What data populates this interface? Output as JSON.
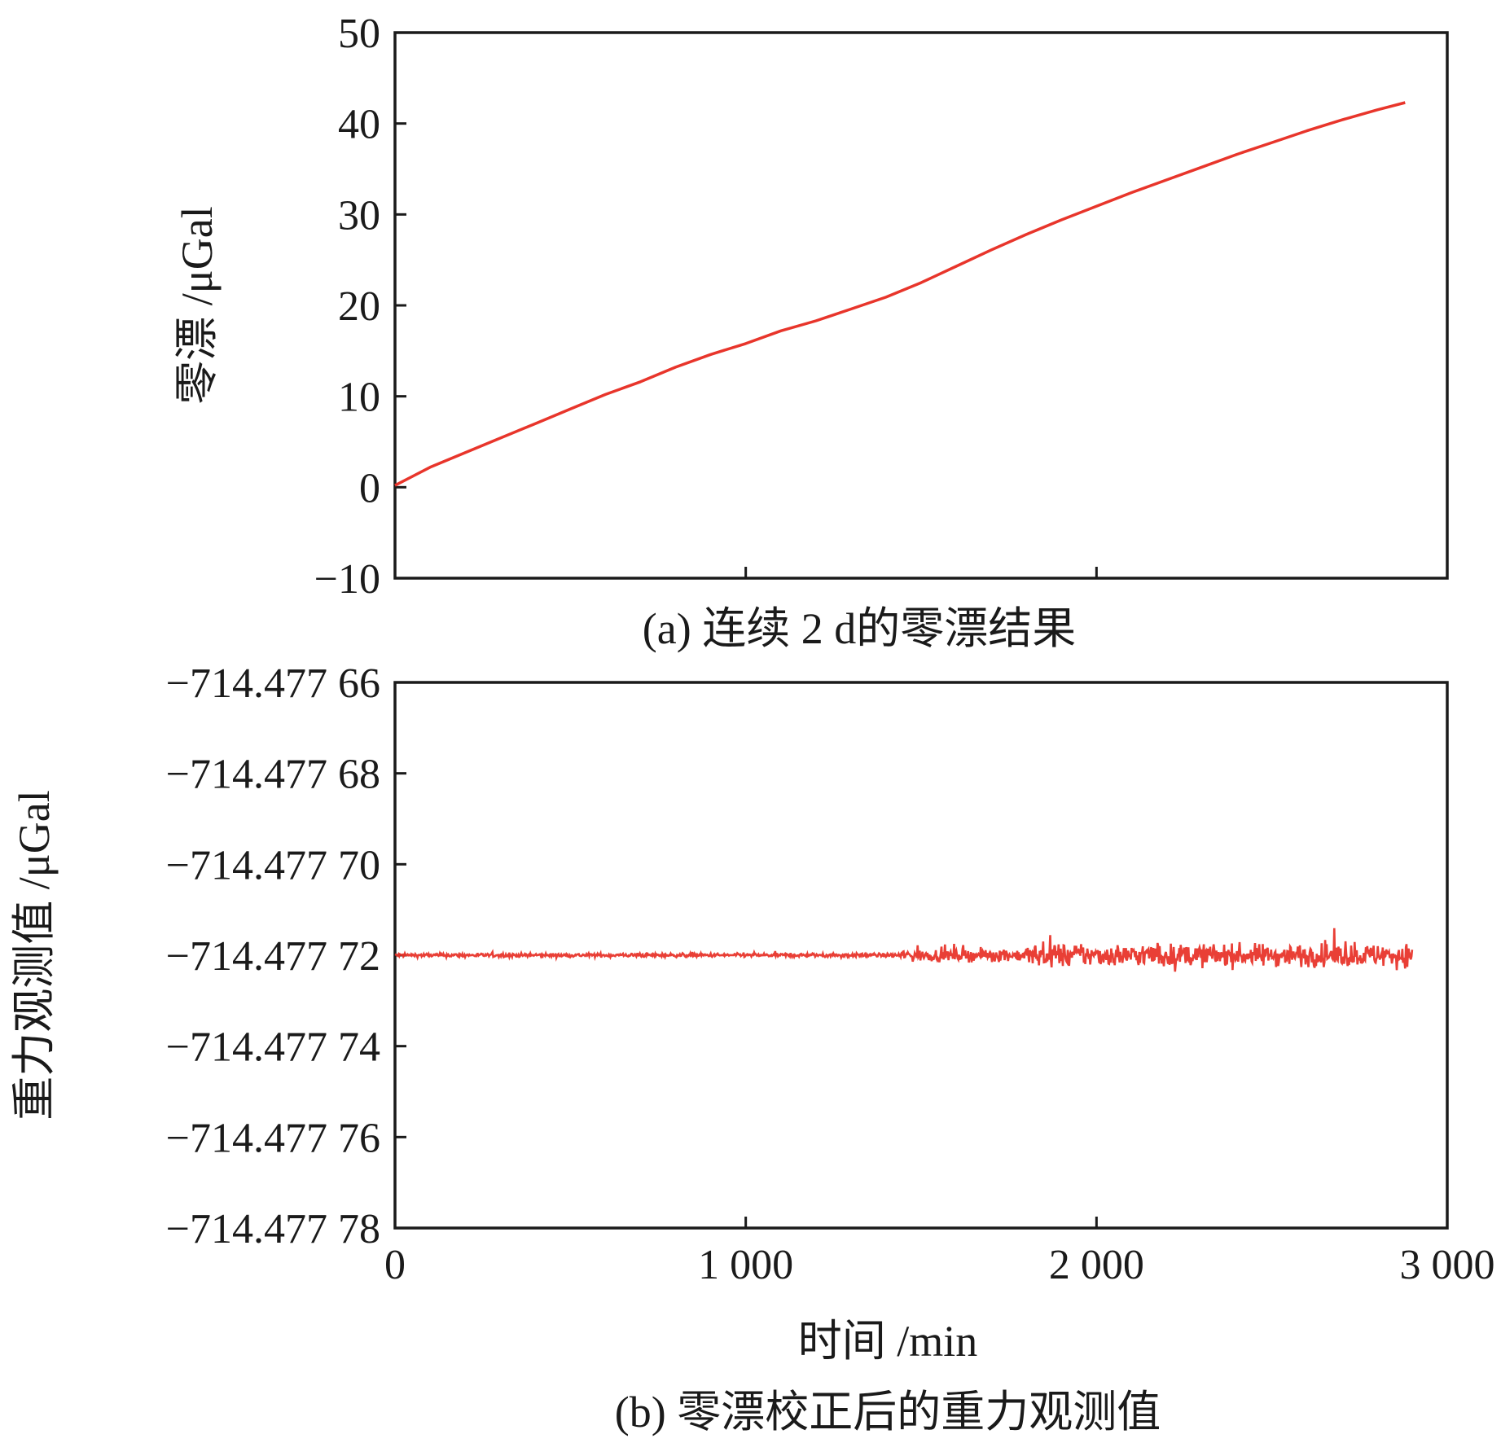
{
  "chart_data": [
    {
      "type": "line",
      "caption": "(a) 连续 2 d的零漂结果",
      "xlabel": "",
      "ylabel": "零漂 /μGal",
      "xlim": [
        0,
        3000
      ],
      "ylim": [
        -10,
        50
      ],
      "y_ticks": [
        50,
        40,
        30,
        20,
        10,
        0,
        -10
      ],
      "y_tick_labels": [
        "50",
        "40",
        "30",
        "20",
        "10",
        "0",
        "−10"
      ],
      "x_ticks": [
        1000,
        2000
      ],
      "x_tick_labels": [],
      "grid": false,
      "series": [
        {
          "color": "#e8352b",
          "x": [
            0,
            100,
            200,
            300,
            400,
            500,
            600,
            700,
            800,
            900,
            1000,
            1100,
            1200,
            1300,
            1400,
            1500,
            1600,
            1700,
            1800,
            1900,
            2000,
            2100,
            2200,
            2300,
            2400,
            2500,
            2600,
            2700,
            2800,
            2880
          ],
          "y": [
            0.2,
            2.2,
            3.8,
            5.4,
            7.0,
            8.6,
            10.2,
            11.6,
            13.2,
            14.6,
            15.8,
            17.2,
            18.3,
            19.6,
            20.9,
            22.5,
            24.3,
            26.1,
            27.8,
            29.4,
            30.9,
            32.4,
            33.8,
            35.2,
            36.6,
            37.9,
            39.2,
            40.4,
            41.5,
            42.3
          ]
        }
      ]
    },
    {
      "type": "line",
      "caption": "(b) 零漂校正后的重力观测值",
      "xlabel": "时间 /min",
      "ylabel": "重力观测值 /μGal",
      "xlim": [
        0,
        3000
      ],
      "ylim": [
        -714.47778,
        -714.47766
      ],
      "y_ticks": [
        -714.47766,
        -714.47768,
        -714.4777,
        -714.47772,
        -714.47774,
        -714.47776,
        -714.47778
      ],
      "y_tick_labels": [
        "−714.477 66",
        "−714.477 68",
        "−714.477 70",
        "−714.477 72",
        "−714.477 74",
        "−714.477 76",
        "−714.477 78"
      ],
      "x_ticks": [
        0,
        1000,
        2000,
        3000
      ],
      "x_tick_labels": [
        "0",
        "1 000",
        "2 000",
        "3 000"
      ],
      "grid": false,
      "series": [
        {
          "color": "#e8352b",
          "x_range": [
            0,
            2900
          ],
          "center": -714.47772,
          "noise_envelope": [
            {
              "x": [
                0,
                1440
              ],
              "amplitude": 6e-07
            },
            {
              "x": [
                1440,
                1800
              ],
              "amplitude": 2e-06
            },
            {
              "x": [
                1800,
                2900
              ],
              "amplitude": 3.7e-06
            }
          ]
        }
      ]
    }
  ]
}
